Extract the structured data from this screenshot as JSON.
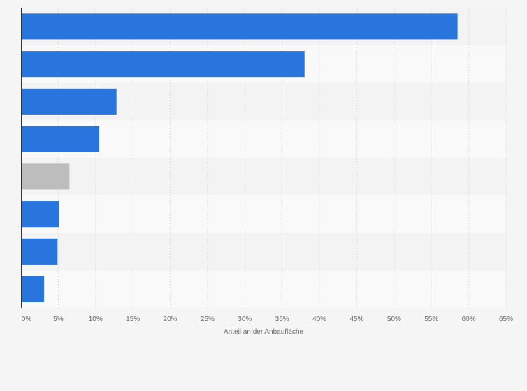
{
  "chart_data": {
    "type": "bar",
    "orientation": "horizontal",
    "categories": [
      "",
      "",
      "",
      "",
      "",
      "",
      "",
      ""
    ],
    "values": [
      58.5,
      38,
      12.8,
      10.5,
      6.5,
      5.1,
      4.9,
      3.1
    ],
    "highlight_index": 4,
    "xlabel": "Anteil an der Anbaufläche",
    "ylabel": "",
    "xlim": [
      0,
      65
    ],
    "xticks": [
      "0%",
      "5%",
      "10%",
      "15%",
      "20%",
      "25%",
      "30%",
      "35%",
      "40%",
      "45%",
      "50%",
      "55%",
      "60%",
      "65%"
    ],
    "grid": true,
    "colors": {
      "bar": "#2876dd",
      "bar_highlight": "#bdbdbd",
      "band_a": "#f3f3f3",
      "band_b": "#f9f9f9",
      "grid": "#dedede",
      "axis": "#333333"
    }
  }
}
